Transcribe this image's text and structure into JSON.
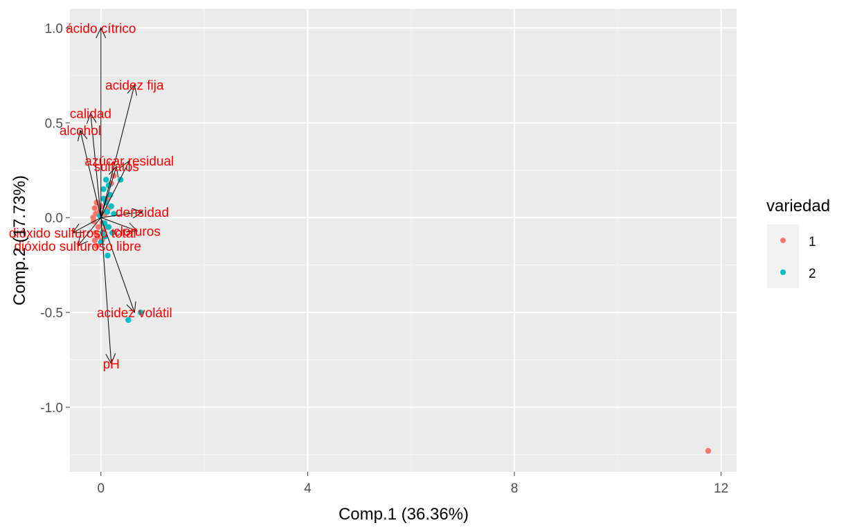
{
  "chart_data": {
    "type": "scatter",
    "subtype": "pca-biplot",
    "xlabel": "Comp.1 (36.36%)",
    "ylabel": "Comp.2 (17.73%)",
    "xlim": [
      -0.6,
      12.3
    ],
    "ylim": [
      -1.34,
      1.1
    ],
    "x_ticks": [
      0,
      4,
      8,
      12
    ],
    "x_tick_labels": [
      "0",
      "4",
      "8",
      "12"
    ],
    "y_ticks": [
      -1.0,
      -0.5,
      0.0,
      0.5,
      1.0
    ],
    "y_tick_labels": [
      "-1.0",
      "-0.5",
      "0.0",
      "0.5",
      "1.0"
    ],
    "grid": true,
    "legend": {
      "title": "variedad",
      "position": "right",
      "entries": [
        {
          "label": "1",
          "color": "#F8766D"
        },
        {
          "label": "2",
          "color": "#00BFC4"
        }
      ]
    },
    "series": [
      {
        "name": "1",
        "color": "#F8766D",
        "points": [
          [
            11.75,
            -1.23
          ],
          [
            -0.08,
            0.08
          ],
          [
            -0.12,
            0.05
          ],
          [
            -0.1,
            0.02
          ],
          [
            -0.14,
            -0.02
          ],
          [
            -0.05,
            -0.05
          ],
          [
            -0.1,
            -0.08
          ],
          [
            -0.06,
            -0.1
          ],
          [
            -0.12,
            -0.12
          ],
          [
            0.0,
            0.06
          ],
          [
            0.03,
            -0.03
          ],
          [
            0.08,
            0.02
          ],
          [
            -0.03,
            0.03
          ],
          [
            0.05,
            -0.07
          ],
          [
            -0.08,
            -0.15
          ],
          [
            0.12,
            0.1
          ],
          [
            0.2,
            0.18
          ],
          [
            0.25,
            0.22
          ],
          [
            0.15,
            0.05
          ],
          [
            0.02,
            -0.12
          ],
          [
            -0.15,
            0.0
          ],
          [
            0.1,
            -0.05
          ]
        ]
      },
      {
        "name": "2",
        "color": "#00BFC4",
        "points": [
          [
            0.53,
            -0.54
          ],
          [
            0.77,
            -0.5
          ],
          [
            0.13,
            -0.2
          ],
          [
            0.0,
            -0.13
          ],
          [
            0.05,
            0.15
          ],
          [
            0.1,
            0.08
          ],
          [
            0.2,
            0.06
          ],
          [
            0.15,
            -0.05
          ],
          [
            0.08,
            -0.1
          ],
          [
            0.05,
            0.1
          ],
          [
            0.25,
            0.02
          ],
          [
            0.18,
            0.12
          ],
          [
            -0.02,
            0.01
          ],
          [
            0.12,
            0.03
          ],
          [
            0.07,
            -0.03
          ],
          [
            0.38,
            0.2
          ],
          [
            0.1,
            0.2
          ],
          [
            0.03,
            -0.08
          ],
          [
            0.22,
            -0.08
          ],
          [
            0.15,
            0.17
          ]
        ]
      }
    ],
    "loadings": [
      {
        "label": "ácido cítrico",
        "x": 0.0,
        "y": 1.0
      },
      {
        "label": "acidez fija",
        "x": 0.65,
        "y": 0.7
      },
      {
        "label": "calidad",
        "x": -0.2,
        "y": 0.55
      },
      {
        "label": "alcohol",
        "x": -0.4,
        "y": 0.46
      },
      {
        "label": "azúcar residual",
        "x": 0.55,
        "y": 0.3
      },
      {
        "label": "sulfatos",
        "x": 0.3,
        "y": 0.27
      },
      {
        "label": "densidad",
        "x": 0.8,
        "y": 0.03
      },
      {
        "label": "cloruros",
        "x": 0.7,
        "y": -0.07
      },
      {
        "label": "dióxido sulfuroso total",
        "x": -0.55,
        "y": -0.08
      },
      {
        "label": "dióxido sulfuroso libre",
        "x": -0.45,
        "y": -0.15
      },
      {
        "label": "acidez volátil",
        "x": 0.65,
        "y": -0.5
      },
      {
        "label": "pH",
        "x": 0.2,
        "y": -0.77
      }
    ],
    "loading_label_color": "#FF0000"
  }
}
